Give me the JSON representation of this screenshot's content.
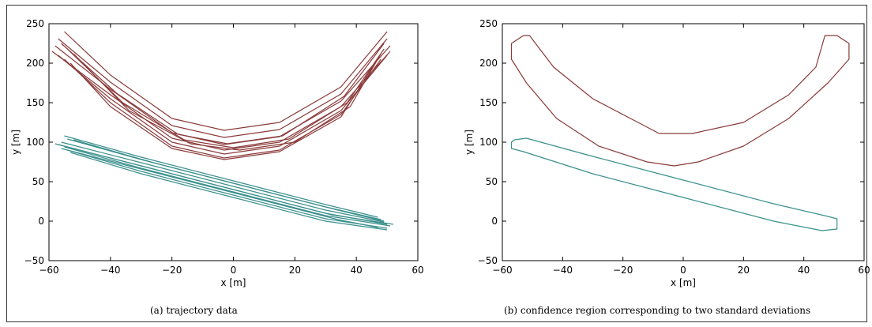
{
  "chart_data": [
    {
      "type": "line",
      "caption": "(a) trajectory data",
      "xlabel": "x [m]",
      "ylabel": "y [m]",
      "xlim": [
        -60,
        60
      ],
      "ylim": [
        -50,
        250
      ],
      "xticks": [
        "−60",
        "−40",
        "−20",
        "0",
        "20",
        "40",
        "60"
      ],
      "yticks": [
        "−50",
        "0",
        "50",
        "100",
        "150",
        "200",
        "250"
      ],
      "colors": {
        "red": "#8b3a3a",
        "teal": "#3a8f8c"
      },
      "series": [
        {
          "color": "red",
          "trajectories": [
            [
              [
                -55,
                240
              ],
              [
                -40,
                185
              ],
              [
                -20,
                130
              ],
              [
                -3,
                115
              ],
              [
                15,
                125
              ],
              [
                35,
                170
              ],
              [
                50,
                240
              ]
            ],
            [
              [
                -57,
                231
              ],
              [
                -40,
                176
              ],
              [
                -20,
                121
              ],
              [
                -3,
                106
              ],
              [
                15,
                116
              ],
              [
                35,
                161
              ],
              [
                50,
                231
              ]
            ],
            [
              [
                -58,
                222
              ],
              [
                -40,
                167
              ],
              [
                -20,
                112
              ],
              [
                -3,
                97
              ],
              [
                15,
                107
              ],
              [
                35,
                152
              ],
              [
                51,
                222
              ]
            ],
            [
              [
                -59,
                215
              ],
              [
                -40,
                160
              ],
              [
                -20,
                105
              ],
              [
                -3,
                90
              ],
              [
                15,
                100
              ],
              [
                35,
                145
              ],
              [
                51,
                215
              ]
            ],
            [
              [
                -57,
                210
              ],
              [
                -40,
                155
              ],
              [
                -20,
                100
              ],
              [
                -3,
                85
              ],
              [
                15,
                95
              ],
              [
                35,
                140
              ],
              [
                50,
                210
              ]
            ],
            [
              [
                -55,
                205
              ],
              [
                -40,
                150
              ],
              [
                -20,
                95
              ],
              [
                -3,
                80
              ],
              [
                15,
                90
              ],
              [
                35,
                135
              ],
              [
                48,
                205
              ]
            ],
            [
              [
                -53,
                200
              ],
              [
                -40,
                145
              ],
              [
                -20,
                92
              ],
              [
                -3,
                78
              ],
              [
                15,
                88
              ],
              [
                35,
                132
              ],
              [
                46,
                200
              ]
            ],
            [
              [
                -56,
                225
              ],
              [
                -38,
                162
              ],
              [
                -18,
                110
              ],
              [
                -2,
                98
              ],
              [
                16,
                108
              ],
              [
                36,
                158
              ],
              [
                49,
                225
              ]
            ],
            [
              [
                -54,
                218
              ],
              [
                -36,
                150
              ],
              [
                -16,
                103
              ],
              [
                0,
                93
              ],
              [
                18,
                104
              ],
              [
                37,
                150
              ],
              [
                49,
                218
              ]
            ],
            [
              [
                -52,
                212
              ],
              [
                -34,
                140
              ],
              [
                -14,
                98
              ],
              [
                2,
                90
              ],
              [
                20,
                100
              ],
              [
                38,
                145
              ],
              [
                48,
                212
              ]
            ]
          ]
        },
        {
          "color": "teal",
          "trajectories": [
            [
              [
                -55,
                108
              ],
              [
                -30,
                81
              ],
              [
                0,
                51
              ],
              [
                30,
                21
              ],
              [
                47,
                5
              ]
            ],
            [
              [
                -54,
                104
              ],
              [
                -30,
                78
              ],
              [
                0,
                48
              ],
              [
                30,
                18
              ],
              [
                48,
                2
              ]
            ],
            [
              [
                -56,
                100
              ],
              [
                -30,
                74
              ],
              [
                0,
                44
              ],
              [
                30,
                14
              ],
              [
                49,
                -1
              ]
            ],
            [
              [
                -57,
                97
              ],
              [
                -30,
                70
              ],
              [
                0,
                40
              ],
              [
                30,
                10
              ],
              [
                50,
                -4
              ]
            ],
            [
              [
                -55,
                94
              ],
              [
                -30,
                67
              ],
              [
                0,
                37
              ],
              [
                30,
                7
              ],
              [
                51,
                -6
              ]
            ],
            [
              [
                -54,
                90
              ],
              [
                -30,
                63
              ],
              [
                0,
                33
              ],
              [
                30,
                3
              ],
              [
                50,
                -9
              ]
            ],
            [
              [
                -53,
                87
              ],
              [
                -30,
                60
              ],
              [
                0,
                30
              ],
              [
                30,
                0
              ],
              [
                50,
                -11
              ]
            ],
            [
              [
                -58,
                98
              ],
              [
                -28,
                68
              ],
              [
                2,
                38
              ],
              [
                32,
                8
              ],
              [
                52,
                -4
              ]
            ],
            [
              [
                -52,
                103
              ],
              [
                -26,
                74
              ],
              [
                4,
                44
              ],
              [
                34,
                14
              ],
              [
                49,
                0
              ]
            ],
            [
              [
                -56,
                92
              ],
              [
                -26,
                62
              ],
              [
                4,
                32
              ],
              [
                34,
                2
              ],
              [
                47,
                -8
              ]
            ]
          ]
        }
      ]
    },
    {
      "type": "line",
      "caption": "(b) confidence region corresponding to two standard deviations",
      "xlabel": "x [m]",
      "ylabel": "y [m]",
      "xlim": [
        -60,
        60
      ],
      "ylim": [
        -50,
        250
      ],
      "xticks": [
        "−60",
        "−40",
        "−20",
        "0",
        "20",
        "40",
        "60"
      ],
      "yticks": [
        "−50",
        "0",
        "50",
        "100",
        "150",
        "200",
        "250"
      ],
      "colors": {
        "red": "#8b3a3a",
        "teal": "#3a8f8c"
      },
      "series": [
        {
          "color": "red",
          "trajectories": [
            [
              [
                -53,
                235
              ],
              [
                -51,
                235
              ],
              [
                -43,
                195
              ],
              [
                -30,
                155
              ],
              [
                -15,
                125
              ],
              [
                -8,
                111
              ],
              [
                3,
                111
              ],
              [
                20,
                125
              ],
              [
                35,
                160
              ],
              [
                44,
                195
              ],
              [
                47,
                235
              ],
              [
                51,
                235
              ],
              [
                55,
                225
              ],
              [
                55,
                205
              ],
              [
                48,
                175
              ],
              [
                35,
                130
              ],
              [
                20,
                95
              ],
              [
                5,
                75
              ],
              [
                -3,
                70
              ],
              [
                -12,
                75
              ],
              [
                -28,
                95
              ],
              [
                -42,
                130
              ],
              [
                -52,
                175
              ],
              [
                -57,
                205
              ],
              [
                -57,
                225
              ],
              [
                -53,
                235
              ]
            ]
          ]
        },
        {
          "color": "teal",
          "trajectories": [
            [
              [
                -56,
                103
              ],
              [
                -52,
                105
              ],
              [
                -30,
                82
              ],
              [
                0,
                52
              ],
              [
                30,
                22
              ],
              [
                48,
                6
              ],
              [
                51,
                3
              ],
              [
                51,
                -10
              ],
              [
                46,
                -12
              ],
              [
                30,
                0
              ],
              [
                0,
                30
              ],
              [
                -30,
                60
              ],
              [
                -53,
                88
              ],
              [
                -57,
                92
              ],
              [
                -57,
                100
              ],
              [
                -56,
                103
              ]
            ]
          ]
        }
      ]
    }
  ]
}
